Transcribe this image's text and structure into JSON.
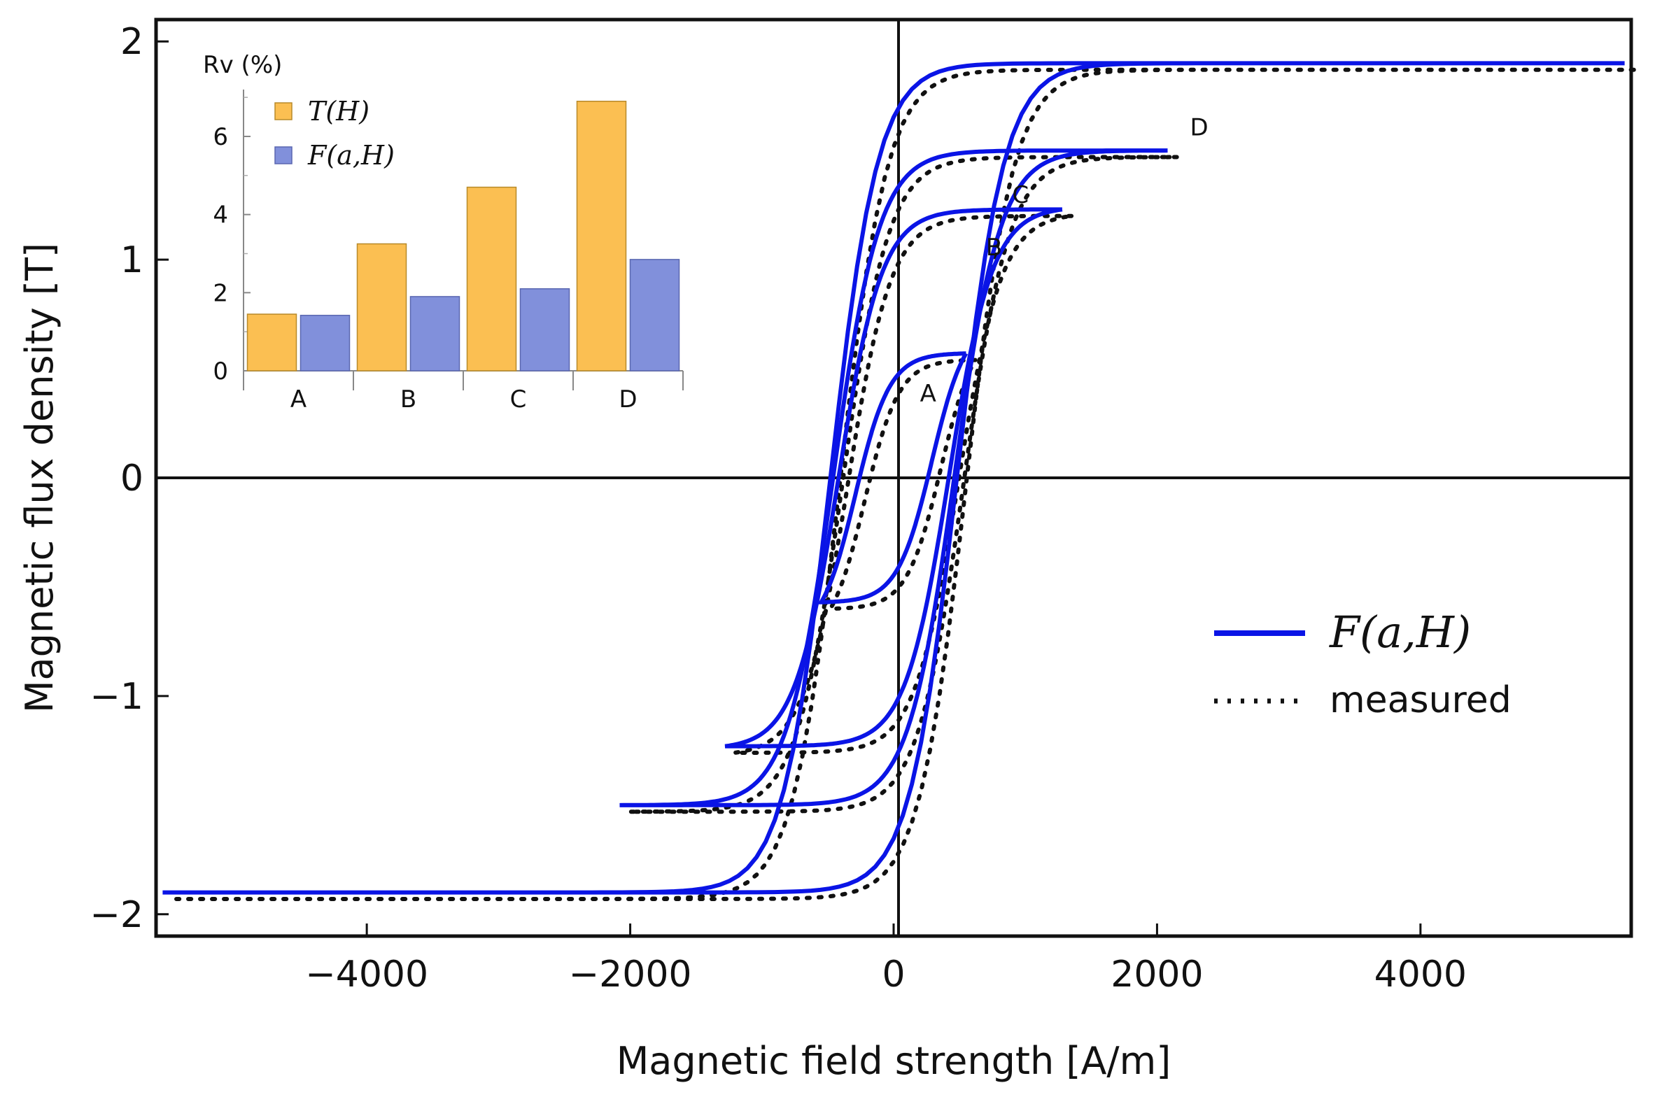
{
  "chart_data": [
    {
      "type": "line",
      "title": "",
      "xlabel": "Magnetic field strength [A/m]",
      "ylabel": "Magnetic flux density [T]",
      "xlim": [
        -5600,
        5600
      ],
      "ylim": [
        -2.1,
        2.1
      ],
      "x_ticks": [
        -4000,
        -2000,
        0,
        2000,
        4000
      ],
      "x_tick_labels": [
        "−4000",
        "−2000",
        "0",
        "2000",
        "4000"
      ],
      "y_ticks": [
        -2,
        -1,
        0,
        1,
        2
      ],
      "y_tick_labels": [
        "−2",
        "−1",
        "0",
        "1",
        "2"
      ],
      "grid": false,
      "zero_lines": true,
      "legend": {
        "placement": "center-right",
        "entries": [
          {
            "label": "F(a,H)",
            "style": "solid",
            "color": "#0a14e6"
          },
          {
            "label": "measured",
            "style": "dotted",
            "color": "#111111"
          }
        ]
      },
      "colors": {
        "model": "#0a14e6",
        "measured": "#111111"
      },
      "loops": [
        {
          "name": "A",
          "hmax": 550,
          "bmax": 0.57,
          "coercivity": 290,
          "bwidth": 260
        },
        {
          "name": "B",
          "hmax": 1280,
          "bmax": 1.23,
          "coercivity": 420,
          "bwidth": 330
        },
        {
          "name": "C",
          "hmax": 2080,
          "bmax": 1.5,
          "coercivity": 460,
          "bwidth": 350
        },
        {
          "name": "D",
          "hmax": 5550,
          "bmax": 1.9,
          "coercivity": 480,
          "bwidth": 360
        }
      ],
      "loop_labels": [
        {
          "text": "A",
          "x": 200,
          "y": 0.35
        },
        {
          "text": "B",
          "x": 700,
          "y": 1.02
        },
        {
          "text": "C",
          "x": 900,
          "y": 1.26
        },
        {
          "text": "D",
          "x": 2250,
          "y": 1.57
        }
      ]
    },
    {
      "type": "bar",
      "title": "Rv (%)",
      "categories": [
        "A",
        "B",
        "C",
        "D"
      ],
      "ylim": [
        0,
        7.2
      ],
      "y_ticks": [
        0,
        2,
        4,
        6
      ],
      "y_tick_labels": [
        "0",
        "2",
        "4",
        "6"
      ],
      "legend": {
        "placement": "top-left"
      },
      "series": [
        {
          "name": "T(H)",
          "color": "#fbbf52",
          "values": [
            1.45,
            3.25,
            4.7,
            6.9
          ]
        },
        {
          "name": "F(a,H)",
          "color": "#8190db",
          "values": [
            1.42,
            1.9,
            2.1,
            2.85
          ]
        }
      ]
    }
  ]
}
